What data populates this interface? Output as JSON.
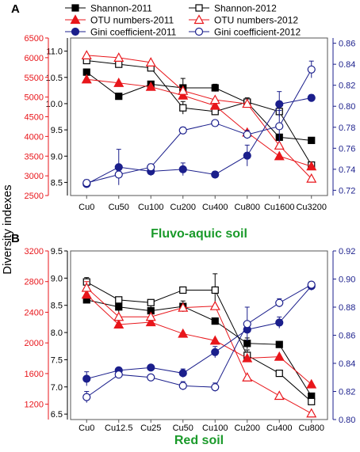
{
  "colors": {
    "shannon": "#000000",
    "otu": "#e8161b",
    "gini": "#1b1f8c",
    "red_axis": "#e8161b",
    "blue_axis": "#1b1f8c",
    "soil_label": "#1a9a2a"
  },
  "shared": {
    "ylabel": "Diversity indexes"
  },
  "legend": {
    "entries": [
      {
        "name": "Shannon-2011",
        "series": "shannon",
        "marker": "square",
        "filled": true
      },
      {
        "name": "Shannon-2012",
        "series": "shannon",
        "marker": "square",
        "filled": false
      },
      {
        "name": "OTU numbers-2011",
        "series": "otu",
        "marker": "triangle",
        "filled": true
      },
      {
        "name": "OTU numbers-2012",
        "series": "otu",
        "marker": "triangle",
        "filled": false
      },
      {
        "name": "Gini coefficient-2011",
        "series": "gini",
        "marker": "circle",
        "filled": true
      },
      {
        "name": "Gini coefficient-2012",
        "series": "gini",
        "marker": "circle",
        "filled": false
      }
    ]
  },
  "chart_data": [
    {
      "type": "line",
      "panel_label": "A",
      "soil_label": "Fluvo-aquic soil",
      "categories": [
        "Cu0",
        "Cu50",
        "Cu100",
        "Cu200",
        "Cu400",
        "Cu800",
        "Cu1600",
        "Cu3200"
      ],
      "axes": {
        "shannon": {
          "range": [
            8.25,
            11.25
          ],
          "ticks": [
            8.5,
            9.0,
            9.5,
            10.0,
            10.5,
            11.0
          ],
          "decimals": 1
        },
        "otu": {
          "range": [
            2500,
            6500
          ],
          "ticks": [
            2500,
            3000,
            3500,
            4000,
            4500,
            5000,
            5500,
            6000,
            6500
          ],
          "decimals": 0
        },
        "gini": {
          "range": [
            0.715,
            0.865
          ],
          "ticks": [
            0.72,
            0.74,
            0.76,
            0.78,
            0.8,
            0.82,
            0.84,
            0.86
          ],
          "decimals": 2
        }
      },
      "series": [
        {
          "name": "Shannon-2011",
          "axis": "shannon",
          "marker": "square",
          "filled": true,
          "values": [
            10.6,
            10.14,
            10.37,
            10.3,
            10.3,
            10.02,
            9.36,
            9.3
          ],
          "errors": [
            0.05,
            0,
            0.05,
            0.18,
            0.07,
            0.03,
            0,
            0
          ]
        },
        {
          "name": "Shannon-2012",
          "axis": "shannon",
          "marker": "square",
          "filled": false,
          "values": [
            10.82,
            10.75,
            10.68,
            9.92,
            9.85,
            10.03,
            9.85,
            8.83
          ],
          "errors": [
            0.05,
            0,
            0.05,
            0.12,
            0.05,
            0.08,
            0,
            0.05
          ]
        },
        {
          "name": "OTU numbers-2011",
          "axis": "otu",
          "marker": "triangle",
          "filled": true,
          "values": [
            5450,
            5360,
            5260,
            5040,
            4780,
            4100,
            3500,
            3240
          ],
          "errors": [
            0,
            0,
            0,
            0,
            0,
            0,
            0,
            0
          ]
        },
        {
          "name": "OTU numbers-2012",
          "axis": "otu",
          "marker": "triangle",
          "filled": false,
          "values": [
            6060,
            6000,
            5880,
            5160,
            4930,
            4830,
            3770,
            2930
          ],
          "errors": [
            0,
            0,
            0,
            0,
            0,
            0,
            0,
            0
          ]
        },
        {
          "name": "Gini coefficient-2011",
          "axis": "gini",
          "marker": "circle",
          "filled": true,
          "values": [
            0.726,
            0.742,
            0.738,
            0.74,
            0.735,
            0.753,
            0.802,
            0.808
          ],
          "errors": [
            0.002,
            0.017,
            0.004,
            0.006,
            0.003,
            0.01,
            0.012,
            0.003
          ]
        },
        {
          "name": "Gini coefficient-2012",
          "axis": "gini",
          "marker": "circle",
          "filled": false,
          "values": [
            0.727,
            0.735,
            0.742,
            0.777,
            0.784,
            0.773,
            0.781,
            0.835
          ],
          "errors": [
            0.003,
            0.004,
            0.003,
            0.003,
            0.002,
            0.004,
            0.015,
            0.008
          ]
        }
      ]
    },
    {
      "type": "line",
      "panel_label": "B",
      "soil_label": "Red soil",
      "categories": [
        "Cu0",
        "Cu12.5",
        "Cu25",
        "Cu50",
        "Cu100",
        "Cu200",
        "Cu400",
        "Cu800"
      ],
      "axes": {
        "shannon": {
          "range": [
            6.4,
            9.5
          ],
          "ticks": [
            6.5,
            7.0,
            7.5,
            8.0,
            8.5,
            9.0,
            9.5
          ],
          "decimals": 1
        },
        "otu": {
          "range": [
            1000,
            3200
          ],
          "ticks": [
            1200,
            1600,
            2000,
            2400,
            2800,
            3200
          ],
          "decimals": 0
        },
        "gini": {
          "range": [
            0.8,
            0.92
          ],
          "ticks": [
            0.8,
            0.82,
            0.84,
            0.86,
            0.88,
            0.9,
            0.92
          ],
          "decimals": 2
        }
      },
      "series": [
        {
          "name": "Shannon-2011",
          "axis": "shannon",
          "marker": "square",
          "filled": true,
          "values": [
            8.6,
            8.47,
            8.4,
            8.48,
            8.21,
            7.8,
            7.78,
            6.83
          ],
          "errors": [
            0.05,
            0.1,
            0.1,
            0.1,
            0,
            0.1,
            0.05,
            0.05
          ]
        },
        {
          "name": "Shannon-2012",
          "axis": "shannon",
          "marker": "square",
          "filled": false,
          "values": [
            8.93,
            8.6,
            8.55,
            8.78,
            8.78,
            7.58,
            7.25,
            6.73
          ],
          "errors": [
            0.08,
            0.05,
            0.04,
            0,
            0.3,
            0.1,
            0,
            0
          ]
        },
        {
          "name": "OTU numbers-2011",
          "axis": "otu",
          "marker": "triangle",
          "filled": true,
          "values": [
            2630,
            2240,
            2270,
            2120,
            2030,
            1800,
            1820,
            1460
          ],
          "errors": [
            0,
            0,
            0,
            0,
            0,
            0,
            0,
            0
          ]
        },
        {
          "name": "OTU numbers-2012",
          "axis": "otu",
          "marker": "triangle",
          "filled": false,
          "values": [
            2720,
            2340,
            2340,
            2460,
            2480,
            1550,
            1310,
            1080
          ],
          "errors": [
            80,
            0,
            0,
            0,
            0,
            0,
            0,
            0
          ]
        },
        {
          "name": "Gini coefficient-2011",
          "axis": "gini",
          "marker": "circle",
          "filled": true,
          "values": [
            0.829,
            0.835,
            0.837,
            0.833,
            0.848,
            0.864,
            0.869,
            0.895
          ],
          "errors": [
            0.005,
            0.002,
            0.002,
            0.003,
            0.004,
            0.002,
            0.004,
            0.003
          ]
        },
        {
          "name": "Gini coefficient-2012",
          "axis": "gini",
          "marker": "circle",
          "filled": false,
          "values": [
            0.816,
            0.832,
            0.83,
            0.824,
            0.823,
            0.868,
            0.883,
            0.896
          ],
          "errors": [
            0.004,
            0.002,
            0.002,
            0.003,
            0.003,
            0.012,
            0.003,
            0.002
          ]
        }
      ]
    }
  ]
}
